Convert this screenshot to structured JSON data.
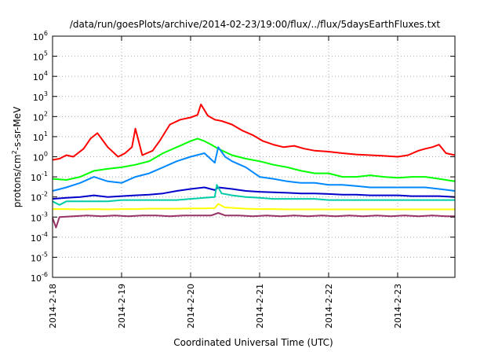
{
  "chart_data": {
    "type": "line",
    "title": "/data/run/goesPlots/archive/2014-02-23/19:00/flux/../flux/5daysEarthFluxes.txt",
    "xlabel": "Coordinated Universal Time (UTC)",
    "ylabel_parts": {
      "main": "protons/cm",
      "sup": "2",
      "rest": "-s-sr-MeV"
    },
    "y_scale": "log",
    "ylim_exp": [
      -6,
      6
    ],
    "y_ticks": [
      {
        "base": "10",
        "exp": "6"
      },
      {
        "base": "10",
        "exp": "5"
      },
      {
        "base": "10",
        "exp": "4"
      },
      {
        "base": "10",
        "exp": "3"
      },
      {
        "base": "10",
        "exp": "2"
      },
      {
        "base": "10",
        "exp": "1"
      },
      {
        "base": "10",
        "exp": "0"
      },
      {
        "base": "10",
        "exp": "-1"
      },
      {
        "base": "10",
        "exp": "-2"
      },
      {
        "base": "10",
        "exp": "-3"
      },
      {
        "base": "10",
        "exp": "-4"
      },
      {
        "base": "10",
        "exp": "-5"
      },
      {
        "base": "10",
        "exp": "-6"
      }
    ],
    "x_ticks": [
      "2014-2-18",
      "2014-2-19",
      "2014-2-20",
      "2014-2-21",
      "2014-2-22",
      "2014-2-23"
    ],
    "x_unit": "days",
    "xlim_days": [
      0,
      5.83
    ],
    "grid": true,
    "legend": "none",
    "series": [
      {
        "color": "#ff0000",
        "x": [
          0,
          0.1,
          0.2,
          0.3,
          0.45,
          0.55,
          0.65,
          0.8,
          0.95,
          1.05,
          1.15,
          1.2,
          1.3,
          1.45,
          1.55,
          1.7,
          1.85,
          2.0,
          2.1,
          2.15,
          2.25,
          2.35,
          2.45,
          2.6,
          2.75,
          2.9,
          3.05,
          3.2,
          3.35,
          3.5,
          3.65,
          3.8,
          4.0,
          4.2,
          4.4,
          4.6,
          4.8,
          5.0,
          5.15,
          5.3,
          5.4,
          5.5,
          5.6,
          5.7,
          5.83
        ],
        "y": [
          0.7,
          0.8,
          1.2,
          1.0,
          2.5,
          8,
          15,
          3,
          1.0,
          1.5,
          3,
          25,
          1.2,
          2,
          6,
          40,
          70,
          90,
          120,
          400,
          110,
          70,
          60,
          40,
          20,
          12,
          6,
          4,
          3,
          3.5,
          2.5,
          2,
          1.8,
          1.5,
          1.3,
          1.2,
          1.1,
          1.0,
          1.2,
          2,
          2.5,
          3,
          4,
          1.5,
          1.2
        ]
      },
      {
        "color": "#00ff00",
        "x": [
          0,
          0.2,
          0.4,
          0.6,
          0.8,
          1.0,
          1.2,
          1.4,
          1.6,
          1.8,
          2.0,
          2.1,
          2.2,
          2.3,
          2.4,
          2.6,
          2.8,
          3.0,
          3.2,
          3.4,
          3.6,
          3.8,
          4.0,
          4.2,
          4.4,
          4.6,
          4.8,
          5.0,
          5.2,
          5.4,
          5.6,
          5.83
        ],
        "y": [
          0.08,
          0.07,
          0.1,
          0.2,
          0.25,
          0.3,
          0.4,
          0.6,
          1.5,
          3,
          6,
          8,
          6,
          4,
          2.5,
          1.2,
          0.8,
          0.6,
          0.4,
          0.3,
          0.2,
          0.15,
          0.15,
          0.1,
          0.1,
          0.12,
          0.1,
          0.09,
          0.1,
          0.1,
          0.08,
          0.06
        ]
      },
      {
        "color": "#0088ff",
        "x": [
          0,
          0.2,
          0.4,
          0.6,
          0.8,
          1.0,
          1.2,
          1.4,
          1.6,
          1.8,
          2.0,
          2.2,
          2.35,
          2.4,
          2.5,
          2.6,
          2.8,
          3.0,
          3.2,
          3.4,
          3.6,
          3.8,
          4.0,
          4.2,
          4.4,
          4.6,
          4.8,
          5.0,
          5.2,
          5.4,
          5.6,
          5.83
        ],
        "y": [
          0.02,
          0.03,
          0.05,
          0.1,
          0.06,
          0.05,
          0.1,
          0.15,
          0.3,
          0.6,
          1.0,
          1.5,
          0.5,
          3,
          1.0,
          0.6,
          0.3,
          0.1,
          0.08,
          0.06,
          0.05,
          0.05,
          0.04,
          0.04,
          0.035,
          0.03,
          0.03,
          0.03,
          0.03,
          0.03,
          0.025,
          0.02
        ]
      },
      {
        "color": "#0000cc",
        "x": [
          0,
          0.2,
          0.4,
          0.6,
          0.8,
          1.0,
          1.2,
          1.4,
          1.6,
          1.8,
          2.0,
          2.2,
          2.35,
          2.4,
          2.6,
          2.8,
          3.0,
          3.2,
          3.4,
          3.6,
          3.8,
          4.0,
          4.2,
          4.4,
          4.6,
          4.8,
          5.0,
          5.2,
          5.4,
          5.6,
          5.83
        ],
        "y": [
          0.008,
          0.009,
          0.01,
          0.012,
          0.01,
          0.011,
          0.012,
          0.013,
          0.015,
          0.02,
          0.025,
          0.03,
          0.022,
          0.03,
          0.025,
          0.02,
          0.018,
          0.017,
          0.016,
          0.015,
          0.015,
          0.014,
          0.013,
          0.013,
          0.012,
          0.012,
          0.012,
          0.011,
          0.011,
          0.011,
          0.01
        ]
      },
      {
        "color": "#00ccaa",
        "x": [
          0,
          0.1,
          0.2,
          0.4,
          0.6,
          0.8,
          1.0,
          1.2,
          1.4,
          1.6,
          1.8,
          2.0,
          2.2,
          2.35,
          2.38,
          2.45,
          2.6,
          2.8,
          3.0,
          3.2,
          3.4,
          3.6,
          3.8,
          4.0,
          4.2,
          4.4,
          4.6,
          4.8,
          5.0,
          5.2,
          5.4,
          5.6,
          5.83
        ],
        "y": [
          0.006,
          0.004,
          0.006,
          0.006,
          0.006,
          0.006,
          0.007,
          0.007,
          0.007,
          0.007,
          0.007,
          0.008,
          0.009,
          0.01,
          0.04,
          0.015,
          0.012,
          0.01,
          0.009,
          0.008,
          0.008,
          0.008,
          0.008,
          0.007,
          0.007,
          0.007,
          0.007,
          0.007,
          0.007,
          0.007,
          0.007,
          0.007,
          0.007
        ]
      },
      {
        "color": "#ffff00",
        "x": [
          0,
          0.2,
          0.4,
          0.6,
          0.8,
          1.0,
          1.2,
          1.4,
          1.6,
          1.8,
          2.0,
          2.2,
          2.35,
          2.4,
          2.5,
          2.8,
          3.0,
          3.2,
          3.4,
          3.6,
          3.8,
          4.0,
          4.2,
          4.4,
          4.6,
          4.8,
          5.0,
          5.2,
          5.4,
          5.6,
          5.83
        ],
        "y": [
          0.0025,
          0.0025,
          0.0024,
          0.0025,
          0.0024,
          0.0025,
          0.0025,
          0.0026,
          0.0026,
          0.0026,
          0.0027,
          0.0027,
          0.0028,
          0.0045,
          0.003,
          0.0026,
          0.0025,
          0.0025,
          0.0024,
          0.0024,
          0.0024,
          0.0024,
          0.0024,
          0.0024,
          0.0024,
          0.0024,
          0.0024,
          0.0024,
          0.0024,
          0.0024,
          0.0024
        ]
      },
      {
        "color": "#993366",
        "x": [
          0,
          0.05,
          0.1,
          0.3,
          0.5,
          0.7,
          0.9,
          1.1,
          1.3,
          1.5,
          1.7,
          1.9,
          2.1,
          2.3,
          2.4,
          2.5,
          2.7,
          2.9,
          3.1,
          3.3,
          3.5,
          3.7,
          3.9,
          4.1,
          4.3,
          4.5,
          4.7,
          4.9,
          5.1,
          5.3,
          5.5,
          5.7,
          5.83
        ],
        "y": [
          0.0009,
          0.0003,
          0.001,
          0.0011,
          0.0012,
          0.0011,
          0.0012,
          0.0011,
          0.0012,
          0.0012,
          0.0011,
          0.0012,
          0.0012,
          0.0012,
          0.0016,
          0.0012,
          0.0012,
          0.0011,
          0.0012,
          0.0011,
          0.0012,
          0.0011,
          0.0012,
          0.0011,
          0.0012,
          0.0011,
          0.0012,
          0.0011,
          0.0012,
          0.0011,
          0.0012,
          0.0011,
          0.0011
        ]
      }
    ]
  }
}
